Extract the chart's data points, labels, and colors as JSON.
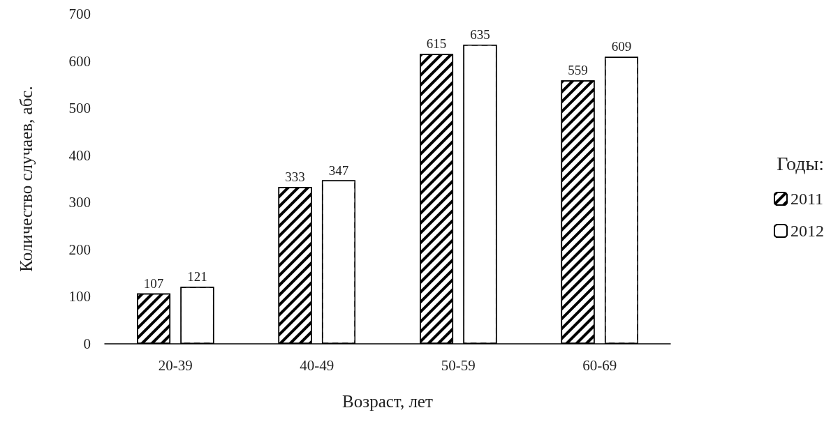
{
  "chart_data": {
    "type": "bar",
    "xlabel": "Возраст, лет",
    "ylabel": "Количество случаев, абс.",
    "legend_title": "Годы:",
    "categories": [
      "20-39",
      "40-49",
      "50-59",
      "60-69"
    ],
    "series": [
      {
        "name": "2011",
        "color": "#000000",
        "values": [
          107,
          333,
          615,
          559
        ]
      },
      {
        "name": "2012",
        "color": "#ffffff",
        "values": [
          121,
          347,
          635,
          609
        ]
      }
    ],
    "ylim": [
      0,
      700
    ],
    "yticks": [
      0,
      100,
      200,
      300,
      400,
      500,
      600,
      700
    ],
    "grid": false,
    "legend": "right",
    "data_labels": true
  }
}
